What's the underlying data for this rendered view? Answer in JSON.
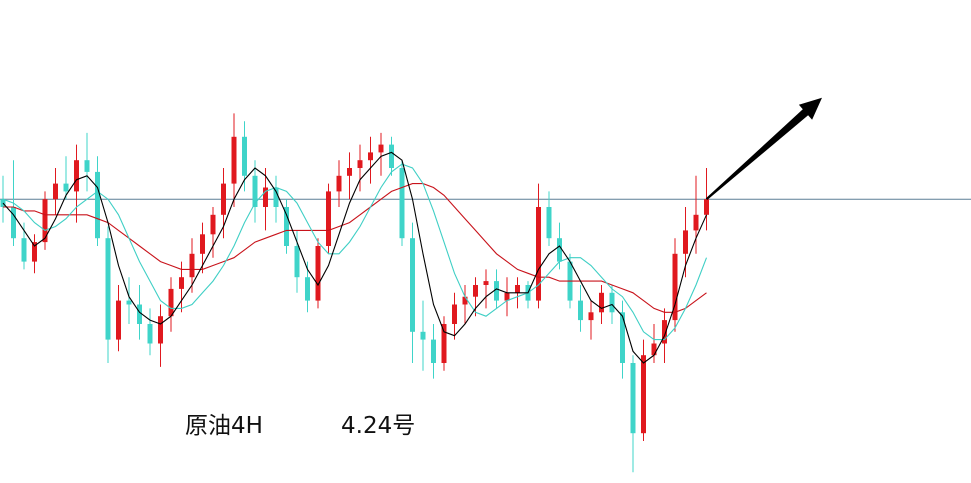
{
  "labels": {
    "instrument": "原油4H",
    "date": "4.24号"
  },
  "colors": {
    "up": "#e0191f",
    "down": "#3fd4c9",
    "ma_short": "#000000",
    "ma_mid": "#3fcfc5",
    "ma_long": "#c8131b",
    "hline": "#5c7f96",
    "arrow": "#000000"
  },
  "chart_data": {
    "type": "candlestick",
    "title": "",
    "xlabel": "",
    "ylabel": "",
    "grid": false,
    "legend": "none",
    "ylim": [
      0,
      100
    ],
    "reference_line": 72,
    "candles": [
      {
        "o": 72,
        "h": 78,
        "l": 66,
        "c": 70
      },
      {
        "o": 70,
        "h": 82,
        "l": 60,
        "c": 62
      },
      {
        "o": 62,
        "h": 66,
        "l": 54,
        "c": 56
      },
      {
        "o": 56,
        "h": 63,
        "l": 53,
        "c": 61
      },
      {
        "o": 61,
        "h": 74,
        "l": 59,
        "c": 72
      },
      {
        "o": 72,
        "h": 80,
        "l": 68,
        "c": 76
      },
      {
        "o": 76,
        "h": 83,
        "l": 72,
        "c": 74
      },
      {
        "o": 74,
        "h": 86,
        "l": 66,
        "c": 82
      },
      {
        "o": 82,
        "h": 89,
        "l": 74,
        "c": 79
      },
      {
        "o": 79,
        "h": 83,
        "l": 60,
        "c": 62
      },
      {
        "o": 62,
        "h": 65,
        "l": 30,
        "c": 36
      },
      {
        "o": 36,
        "h": 50,
        "l": 33,
        "c": 46
      },
      {
        "o": 46,
        "h": 52,
        "l": 40,
        "c": 45
      },
      {
        "o": 45,
        "h": 50,
        "l": 36,
        "c": 40
      },
      {
        "o": 40,
        "h": 44,
        "l": 32,
        "c": 35
      },
      {
        "o": 35,
        "h": 45,
        "l": 29,
        "c": 42
      },
      {
        "o": 42,
        "h": 52,
        "l": 38,
        "c": 49
      },
      {
        "o": 49,
        "h": 56,
        "l": 43,
        "c": 52
      },
      {
        "o": 52,
        "h": 62,
        "l": 48,
        "c": 58
      },
      {
        "o": 58,
        "h": 66,
        "l": 53,
        "c": 63
      },
      {
        "o": 63,
        "h": 70,
        "l": 57,
        "c": 68
      },
      {
        "o": 68,
        "h": 80,
        "l": 62,
        "c": 76
      },
      {
        "o": 76,
        "h": 94,
        "l": 70,
        "c": 88
      },
      {
        "o": 88,
        "h": 92,
        "l": 74,
        "c": 78
      },
      {
        "o": 78,
        "h": 82,
        "l": 66,
        "c": 70
      },
      {
        "o": 70,
        "h": 80,
        "l": 64,
        "c": 75
      },
      {
        "o": 75,
        "h": 78,
        "l": 66,
        "c": 70
      },
      {
        "o": 70,
        "h": 72,
        "l": 58,
        "c": 60
      },
      {
        "o": 60,
        "h": 64,
        "l": 48,
        "c": 52
      },
      {
        "o": 52,
        "h": 56,
        "l": 43,
        "c": 46
      },
      {
        "o": 46,
        "h": 62,
        "l": 44,
        "c": 60
      },
      {
        "o": 60,
        "h": 76,
        "l": 58,
        "c": 74
      },
      {
        "o": 74,
        "h": 82,
        "l": 70,
        "c": 78
      },
      {
        "o": 78,
        "h": 84,
        "l": 72,
        "c": 80
      },
      {
        "o": 80,
        "h": 86,
        "l": 74,
        "c": 82
      },
      {
        "o": 82,
        "h": 88,
        "l": 76,
        "c": 84
      },
      {
        "o": 84,
        "h": 89,
        "l": 78,
        "c": 86
      },
      {
        "o": 86,
        "h": 88,
        "l": 78,
        "c": 80
      },
      {
        "o": 80,
        "h": 82,
        "l": 60,
        "c": 62
      },
      {
        "o": 62,
        "h": 66,
        "l": 30,
        "c": 38
      },
      {
        "o": 38,
        "h": 46,
        "l": 28,
        "c": 36
      },
      {
        "o": 36,
        "h": 40,
        "l": 26,
        "c": 30
      },
      {
        "o": 30,
        "h": 42,
        "l": 28,
        "c": 40
      },
      {
        "o": 40,
        "h": 48,
        "l": 36,
        "c": 45
      },
      {
        "o": 45,
        "h": 50,
        "l": 40,
        "c": 47
      },
      {
        "o": 47,
        "h": 52,
        "l": 42,
        "c": 50
      },
      {
        "o": 50,
        "h": 54,
        "l": 44,
        "c": 51
      },
      {
        "o": 51,
        "h": 54,
        "l": 44,
        "c": 46
      },
      {
        "o": 46,
        "h": 52,
        "l": 42,
        "c": 48
      },
      {
        "o": 48,
        "h": 52,
        "l": 44,
        "c": 50
      },
      {
        "o": 50,
        "h": 51,
        "l": 44,
        "c": 46
      },
      {
        "o": 46,
        "h": 76,
        "l": 44,
        "c": 70
      },
      {
        "o": 70,
        "h": 74,
        "l": 60,
        "c": 62
      },
      {
        "o": 62,
        "h": 66,
        "l": 54,
        "c": 56
      },
      {
        "o": 56,
        "h": 58,
        "l": 44,
        "c": 46
      },
      {
        "o": 46,
        "h": 50,
        "l": 38,
        "c": 41
      },
      {
        "o": 41,
        "h": 46,
        "l": 36,
        "c": 43
      },
      {
        "o": 43,
        "h": 50,
        "l": 40,
        "c": 48
      },
      {
        "o": 48,
        "h": 50,
        "l": 40,
        "c": 43
      },
      {
        "o": 43,
        "h": 46,
        "l": 26,
        "c": 30
      },
      {
        "o": 30,
        "h": 32,
        "l": 2,
        "c": 12
      },
      {
        "o": 12,
        "h": 36,
        "l": 10,
        "c": 32
      },
      {
        "o": 32,
        "h": 40,
        "l": 30,
        "c": 35
      },
      {
        "o": 35,
        "h": 44,
        "l": 30,
        "c": 41
      },
      {
        "o": 41,
        "h": 62,
        "l": 38,
        "c": 58
      },
      {
        "o": 58,
        "h": 70,
        "l": 52,
        "c": 64
      },
      {
        "o": 64,
        "h": 78,
        "l": 58,
        "c": 68
      },
      {
        "o": 68,
        "h": 80,
        "l": 64,
        "c": 72
      }
    ],
    "ma_short": [
      71,
      68,
      64,
      60,
      62,
      67,
      73,
      77,
      78,
      75,
      66,
      55,
      47,
      43,
      41,
      40,
      42,
      46,
      50,
      55,
      60,
      65,
      72,
      77,
      80,
      78,
      74,
      68,
      61,
      54,
      50,
      55,
      63,
      71,
      77,
      80,
      83,
      84,
      82,
      72,
      58,
      45,
      38,
      37,
      40,
      44,
      47,
      49,
      48,
      48,
      48,
      54,
      58,
      60,
      56,
      51,
      46,
      44,
      45,
      42,
      33,
      30,
      32,
      37,
      45,
      55,
      62,
      68
    ],
    "ma_mid": [
      72,
      71,
      69,
      66,
      64,
      65,
      67,
      70,
      72,
      74,
      72,
      68,
      62,
      56,
      51,
      46,
      44,
      44,
      45,
      48,
      51,
      55,
      60,
      66,
      71,
      74,
      75,
      74,
      71,
      66,
      61,
      58,
      58,
      61,
      65,
      70,
      75,
      79,
      81,
      80,
      76,
      69,
      61,
      53,
      47,
      43,
      42,
      44,
      46,
      47,
      48,
      50,
      53,
      56,
      57,
      57,
      55,
      52,
      49,
      47,
      43,
      38,
      36,
      36,
      39,
      44,
      50,
      57
    ],
    "ma_long": [
      70,
      70,
      69,
      69,
      68,
      68,
      68,
      68,
      68,
      67,
      66,
      64,
      62,
      60,
      58,
      56,
      55,
      54,
      54,
      54,
      55,
      56,
      57,
      59,
      61,
      62,
      63,
      64,
      64,
      64,
      64,
      64,
      65,
      66,
      68,
      70,
      72,
      74,
      75,
      76,
      76,
      75,
      73,
      70,
      67,
      64,
      61,
      58,
      56,
      54,
      53,
      52,
      52,
      51,
      51,
      51,
      51,
      51,
      50,
      49,
      48,
      46,
      44,
      43,
      43,
      44,
      46,
      48
    ],
    "arrow": {
      "from": {
        "candle": 67,
        "value": 72
      },
      "to": {
        "candle": 78,
        "value": 98
      }
    }
  }
}
